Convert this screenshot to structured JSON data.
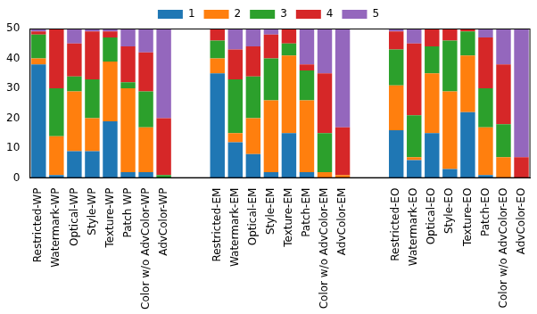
{
  "chart_data": {
    "type": "bar",
    "stacked": true,
    "grid": false,
    "legend": "top",
    "categories": [
      "Restricted-WP",
      "Watermark-WP",
      "Optical-WP",
      "Style-WP",
      "Texture-WP",
      "Patch WP",
      "Color w/o AdvColor-WP",
      "AdvColor-WP",
      null,
      null,
      "Restricted-EM",
      "Watermark-EM",
      "Optical-EM",
      "Style-EM",
      "Texture-EM",
      "Patch-EM",
      "Color w/o AdvColor-EM",
      "AdvColor-EM",
      null,
      null,
      "Restricted-EO",
      "Watermark-EO",
      "Optical-EO",
      "Style-EO",
      "Texture-EO",
      "Patch-EO",
      "Color w/o AdvColor-EO",
      "AdvColor-EO"
    ],
    "series": [
      {
        "name": "1",
        "color": "#1f77b4",
        "values": [
          38,
          1,
          9,
          9,
          19,
          2,
          2,
          0,
          null,
          null,
          35,
          12,
          8,
          2,
          15,
          2,
          0,
          0,
          null,
          null,
          16,
          6,
          15,
          3,
          22,
          1,
          0,
          0
        ]
      },
      {
        "name": "2",
        "color": "#ff7f0e",
        "values": [
          2,
          13,
          20,
          11,
          20,
          28,
          15,
          0,
          null,
          null,
          5,
          3,
          12,
          24,
          26,
          24,
          2,
          1,
          null,
          null,
          15,
          1,
          20,
          26,
          19,
          16,
          7,
          0
        ]
      },
      {
        "name": "3",
        "color": "#2ca02c",
        "values": [
          8,
          16,
          5,
          13,
          8,
          2,
          12,
          1,
          null,
          null,
          6,
          18,
          14,
          14,
          4,
          10,
          13,
          0,
          null,
          null,
          12,
          14,
          9,
          17,
          8,
          13,
          11,
          0
        ]
      },
      {
        "name": "4",
        "color": "#d62728",
        "values": [
          1,
          20,
          11,
          16,
          2,
          12,
          13,
          19,
          null,
          null,
          4,
          10,
          10,
          8,
          5,
          2,
          20,
          16,
          null,
          null,
          6,
          24,
          6,
          4,
          1,
          17,
          20,
          7
        ]
      },
      {
        "name": "5",
        "color": "#9467bd",
        "values": [
          1,
          0,
          5,
          1,
          1,
          6,
          8,
          30,
          null,
          null,
          0,
          7,
          6,
          2,
          0,
          12,
          15,
          33,
          null,
          null,
          1,
          5,
          0,
          0,
          0,
          3,
          12,
          43
        ]
      }
    ],
    "ylim": [
      0,
      50
    ],
    "yticks": [
      0,
      10,
      20,
      30,
      40,
      50
    ]
  }
}
